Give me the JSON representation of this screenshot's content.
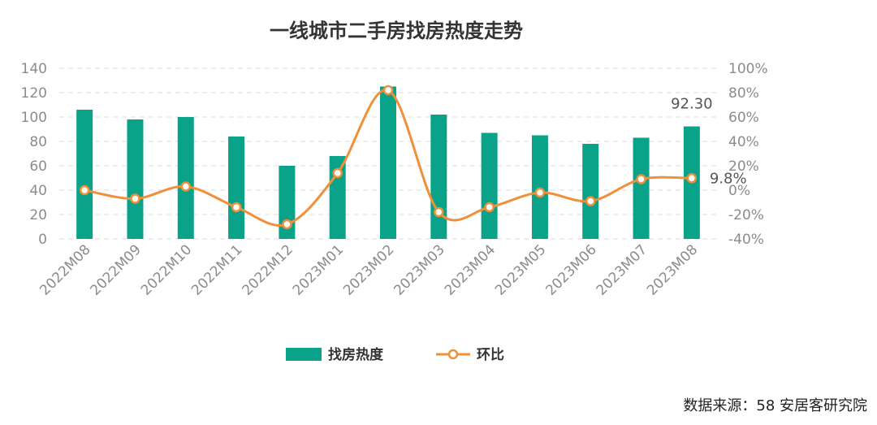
{
  "chart_data": {
    "type": "bar+line",
    "title": "一线城市二手房找房热度走势",
    "categories": [
      "2022M08",
      "2022M09",
      "2022M10",
      "2022M11",
      "2022M12",
      "2023M01",
      "2023M02",
      "2023M03",
      "2023M04",
      "2023M05",
      "2023M06",
      "2023M07",
      "2023M08"
    ],
    "series": [
      {
        "name": "找房热度",
        "type": "bar",
        "axis": "left",
        "color": "#0aa38a",
        "values": [
          106,
          98,
          100,
          84,
          60,
          68,
          125,
          102,
          87,
          85,
          78,
          83,
          92.3
        ]
      },
      {
        "name": "环比",
        "type": "line",
        "axis": "right",
        "color": "#f0903a",
        "unit": "%",
        "values": [
          0,
          -7,
          3,
          -14,
          -28,
          14,
          82,
          -18,
          -14,
          -2,
          -9,
          9,
          9.8
        ]
      }
    ],
    "left_axis": {
      "min": 0,
      "max": 140,
      "step": 20,
      "ticks": [
        "0",
        "20",
        "40",
        "60",
        "80",
        "100",
        "120",
        "140"
      ]
    },
    "right_axis": {
      "min": -40,
      "max": 100,
      "step": 20,
      "ticks": [
        "-40%",
        "-20%",
        "0%",
        "20%",
        "40%",
        "60%",
        "80%",
        "100%"
      ]
    },
    "annotations": [
      {
        "series": "找房热度",
        "index": 12,
        "text": "92.30"
      },
      {
        "series": "环比",
        "index": 12,
        "text": "9.8%"
      }
    ],
    "legend": {
      "position": "bottom",
      "items": [
        "找房热度",
        "环比"
      ]
    },
    "grid": true
  },
  "source_text": "数据来源：58 安居客研究院"
}
